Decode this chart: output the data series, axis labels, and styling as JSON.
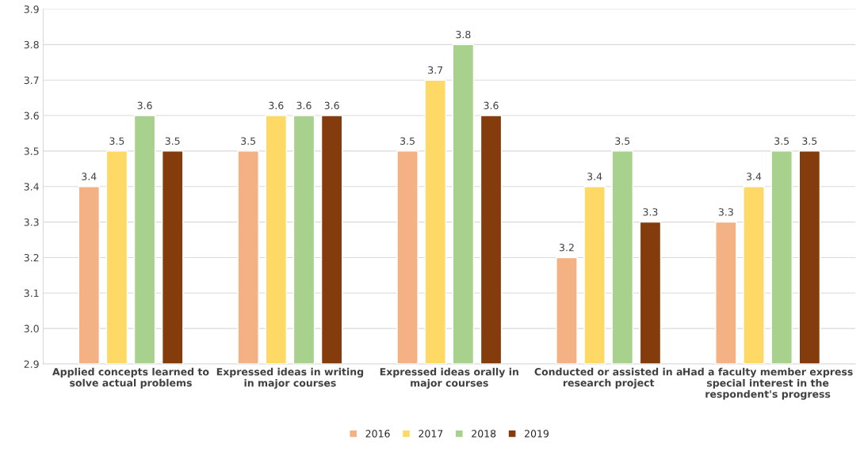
{
  "chart_data": {
    "type": "bar",
    "categories": [
      "Applied concepts learned to solve actual problems",
      "Expressed ideas in writing in major courses",
      "Expressed ideas orally in major courses",
      "Conducted or assisted in a research project",
      "Had a faculty member express special interest in the respondent's progress"
    ],
    "series": [
      {
        "name": "2016",
        "color": "#f4b183",
        "values": [
          3.4,
          3.5,
          3.5,
          3.2,
          3.3
        ]
      },
      {
        "name": "2017",
        "color": "#ffd966",
        "values": [
          3.5,
          3.6,
          3.7,
          3.4,
          3.4
        ]
      },
      {
        "name": "2018",
        "color": "#a9d18e",
        "values": [
          3.6,
          3.6,
          3.8,
          3.5,
          3.5
        ]
      },
      {
        "name": "2019",
        "color": "#843c0c",
        "values": [
          3.5,
          3.6,
          3.6,
          3.3,
          3.5
        ]
      }
    ],
    "ylim": [
      2.9,
      3.9
    ],
    "yticks": [
      2.9,
      {
        "value": 3,
        "label": "3.0"
      },
      3.1,
      3.2,
      3.3,
      3.4,
      3.5,
      3.6,
      3.7,
      3.8,
      3.9
    ],
    "grid": "y",
    "legend": "bottom",
    "data_labels": true
  }
}
